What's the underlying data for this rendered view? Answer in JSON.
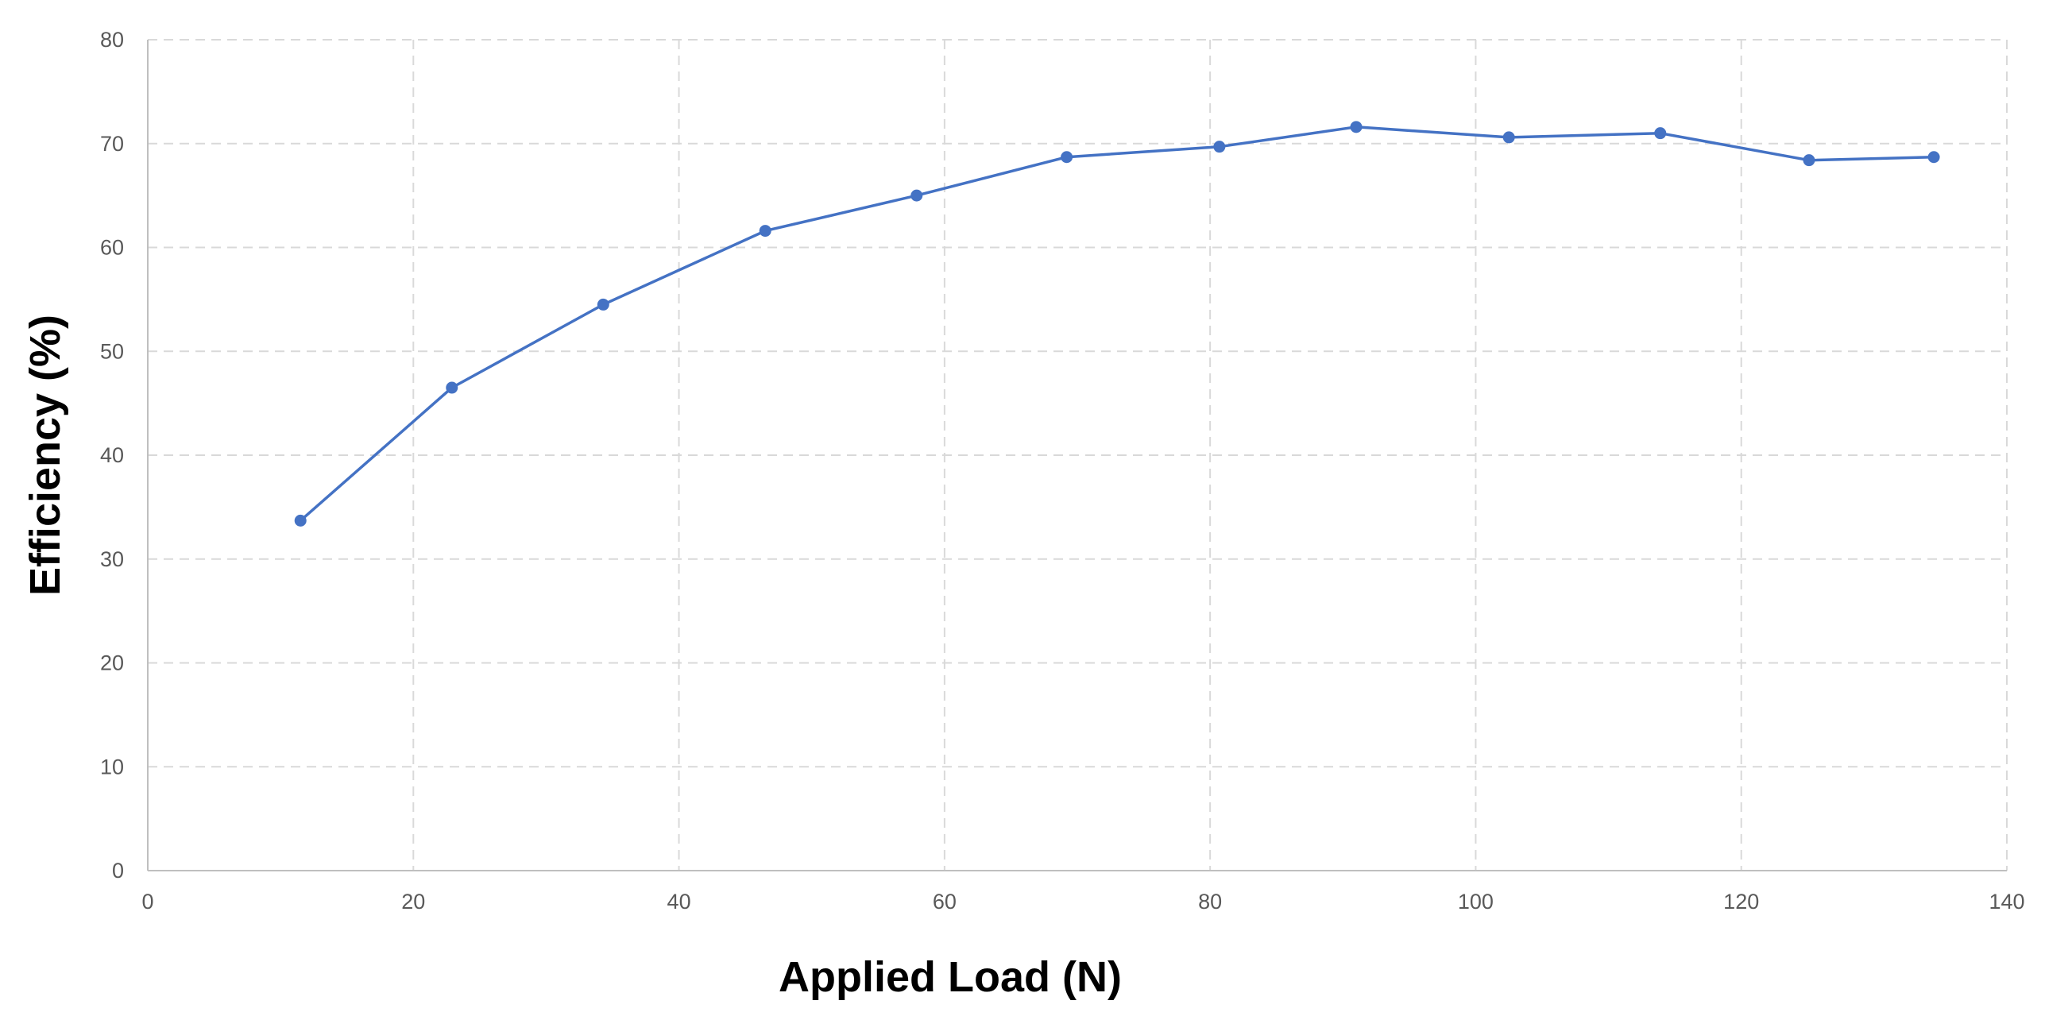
{
  "chart_data": {
    "type": "line",
    "title": "",
    "xlabel": "Applied Load (N)",
    "ylabel": "Efficiency (%)",
    "xlim": [
      0,
      140
    ],
    "ylim": [
      0,
      80
    ],
    "x_ticks": [
      0,
      20,
      40,
      60,
      80,
      100,
      120,
      140
    ],
    "y_ticks": [
      0,
      10,
      20,
      30,
      40,
      50,
      60,
      70,
      80
    ],
    "grid": true,
    "legend": "none",
    "series": [
      {
        "color": "#4472c4",
        "marker": "circle",
        "x": [
          11.5,
          22.9,
          34.3,
          46.5,
          57.9,
          69.2,
          80.7,
          91.0,
          102.5,
          113.9,
          125.1,
          134.5
        ],
        "y": [
          33.7,
          46.5,
          54.5,
          61.6,
          65.0,
          68.7,
          69.7,
          71.6,
          70.6,
          71.0,
          68.4,
          68.7
        ]
      }
    ]
  }
}
